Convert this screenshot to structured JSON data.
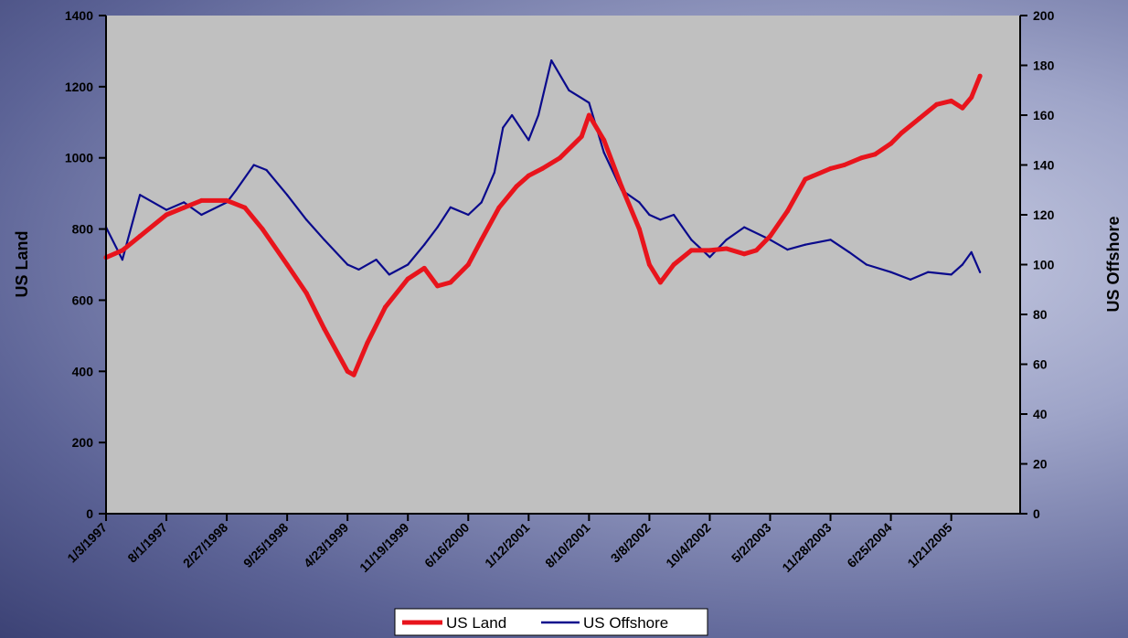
{
  "colors": {
    "plot_background": "#c0c0c0",
    "us_land": "#e8141c",
    "us_offshore": "#0a0a8c"
  },
  "chart_data": {
    "type": "line",
    "title": "",
    "xlabel": "",
    "ylabel": "US Land",
    "y2label": "US Offshore",
    "ylim": [
      0,
      1400
    ],
    "y2lim": [
      0,
      200
    ],
    "yticks": [
      0,
      200,
      400,
      600,
      800,
      1000,
      1200,
      1400
    ],
    "y2ticks": [
      0,
      20,
      40,
      60,
      80,
      100,
      120,
      140,
      160,
      180,
      200
    ],
    "xticks": [
      "1/3/1997",
      "8/1/1997",
      "2/27/1998",
      "9/25/1998",
      "4/23/1999",
      "11/19/1999",
      "6/16/2000",
      "1/12/2001",
      "8/10/2001",
      "3/8/2002",
      "10/4/2002",
      "5/2/2003",
      "11/28/2003",
      "6/25/2004",
      "1/21/2005"
    ],
    "grid": false,
    "legend_position": "bottom",
    "series": [
      {
        "name": "US Land",
        "axis": "left",
        "x": [
          "1/3/1997",
          "3/1/1997",
          "5/1/1997",
          "8/1/1997",
          "10/1/1997",
          "12/1/1997",
          "2/27/1998",
          "5/1/1998",
          "7/1/1998",
          "9/25/1998",
          "12/1/1998",
          "2/1/1999",
          "4/23/1999",
          "5/15/1999",
          "7/1/1999",
          "9/1/1999",
          "11/19/1999",
          "1/15/2000",
          "3/1/2000",
          "4/15/2000",
          "6/16/2000",
          "8/1/2000",
          "10/1/2000",
          "12/1/2000",
          "1/12/2001",
          "3/1/2001",
          "5/1/2001",
          "7/15/2001",
          "8/10/2001",
          "10/1/2001",
          "12/1/2001",
          "2/1/2002",
          "3/8/2002",
          "4/15/2002",
          "6/1/2002",
          "8/1/2002",
          "10/4/2002",
          "12/1/2002",
          "2/1/2003",
          "3/15/2003",
          "5/2/2003",
          "7/1/2003",
          "9/1/2003",
          "11/28/2003",
          "1/15/2004",
          "3/15/2004",
          "5/1/2004",
          "6/25/2004",
          "8/1/2004",
          "10/1/2004",
          "12/1/2004",
          "1/21/2005",
          "3/1/2005",
          "4/1/2005",
          "5/1/2005"
        ],
        "values": [
          720,
          740,
          780,
          840,
          860,
          880,
          880,
          860,
          800,
          700,
          620,
          520,
          400,
          390,
          480,
          580,
          660,
          690,
          640,
          650,
          700,
          770,
          860,
          920,
          950,
          970,
          1000,
          1060,
          1120,
          1050,
          920,
          800,
          700,
          650,
          700,
          740,
          740,
          745,
          730,
          740,
          780,
          850,
          940,
          970,
          980,
          1000,
          1010,
          1040,
          1070,
          1110,
          1150,
          1160,
          1140,
          1170,
          1230
        ]
      },
      {
        "name": "US Offshore",
        "axis": "right",
        "x": [
          "1/3/1997",
          "3/1/1997",
          "5/1/1997",
          "8/1/1997",
          "10/1/1997",
          "12/1/1997",
          "2/27/1998",
          "4/1/1998",
          "6/1/1998",
          "7/15/1998",
          "9/25/1998",
          "12/1/1998",
          "2/1/1999",
          "4/23/1999",
          "6/1/1999",
          "8/1/1999",
          "9/15/1999",
          "11/19/1999",
          "1/15/2000",
          "3/1/2000",
          "4/15/2000",
          "6/16/2000",
          "8/1/2000",
          "9/15/2000",
          "10/15/2000",
          "11/15/2000",
          "1/12/2001",
          "2/15/2001",
          "4/1/2001",
          "6/1/2001",
          "8/10/2001",
          "10/1/2001",
          "12/1/2001",
          "2/1/2002",
          "3/8/2002",
          "4/15/2002",
          "6/1/2002",
          "8/1/2002",
          "10/4/2002",
          "12/1/2002",
          "2/1/2003",
          "5/2/2003",
          "7/1/2003",
          "9/1/2003",
          "11/28/2003",
          "2/1/2004",
          "4/1/2004",
          "6/25/2004",
          "9/1/2004",
          "11/1/2004",
          "1/21/2005",
          "3/1/2005",
          "4/1/2005",
          "5/1/2005"
        ],
        "values": [
          115,
          102,
          128,
          122,
          125,
          120,
          125,
          130,
          140,
          138,
          128,
          118,
          110,
          100,
          98,
          102,
          96,
          100,
          108,
          115,
          123,
          120,
          125,
          137,
          155,
          160,
          150,
          160,
          182,
          170,
          165,
          145,
          130,
          125,
          120,
          118,
          120,
          110,
          103,
          110,
          115,
          110,
          106,
          108,
          110,
          105,
          100,
          97,
          94,
          97,
          96,
          100,
          105,
          97
        ]
      }
    ]
  },
  "legend": {
    "land_label": "US Land",
    "offshore_label": "US Offshore"
  }
}
